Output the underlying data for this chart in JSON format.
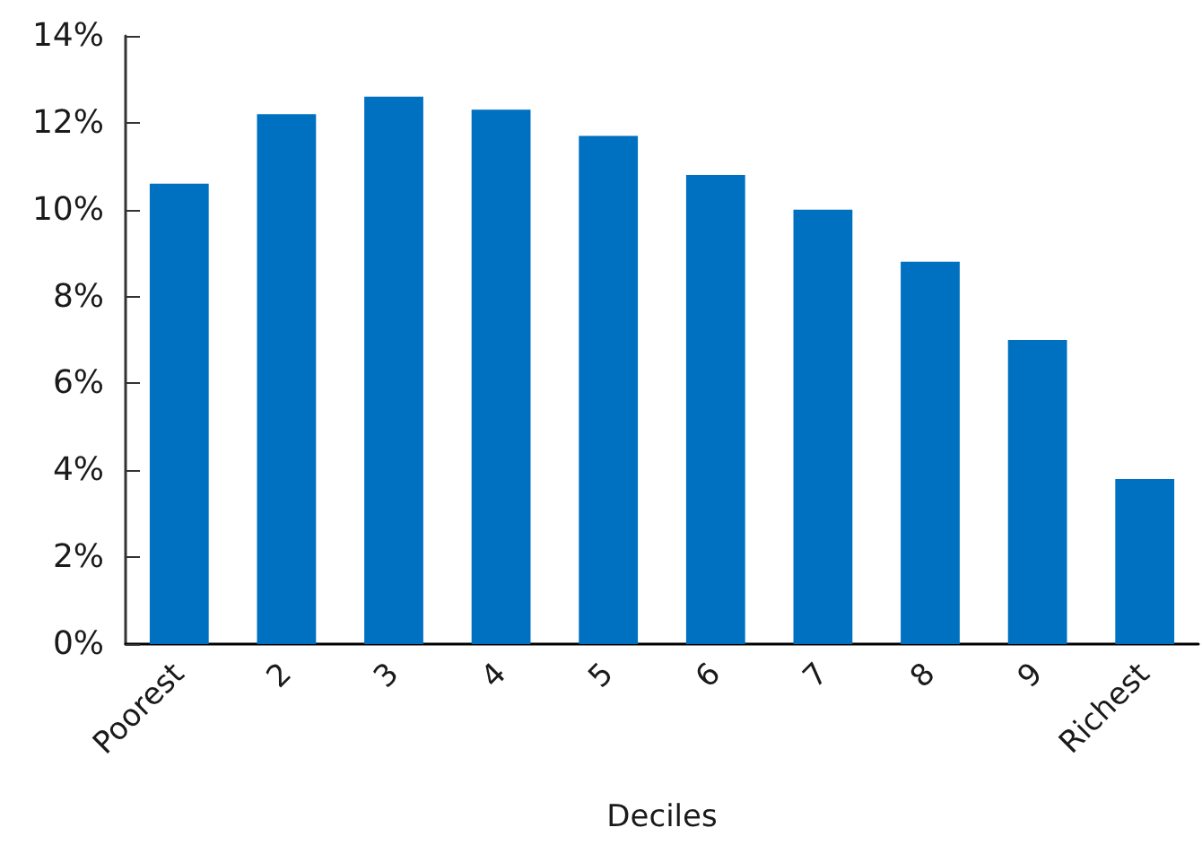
{
  "chart_data": {
    "type": "bar",
    "xlabel": "Deciles",
    "categories": [
      "Poorest",
      "2",
      "3",
      "4",
      "5",
      "6",
      "7",
      "8",
      "9",
      "Richest"
    ],
    "values": [
      10.6,
      12.2,
      12.6,
      12.3,
      11.7,
      10.8,
      10.0,
      8.8,
      7.0,
      3.8
    ],
    "color": "#0070c0",
    "ylim": [
      0,
      14
    ],
    "yticks": [
      {
        "value": 0,
        "label": "0%"
      },
      {
        "value": 2,
        "label": "2%"
      },
      {
        "value": 4,
        "label": "4%"
      },
      {
        "value": 6,
        "label": "6%"
      },
      {
        "value": 8,
        "label": "8%"
      },
      {
        "value": 10,
        "label": "10%"
      },
      {
        "value": 12,
        "label": "12%"
      },
      {
        "value": 14,
        "label": "14%"
      }
    ],
    "grid": false
  }
}
